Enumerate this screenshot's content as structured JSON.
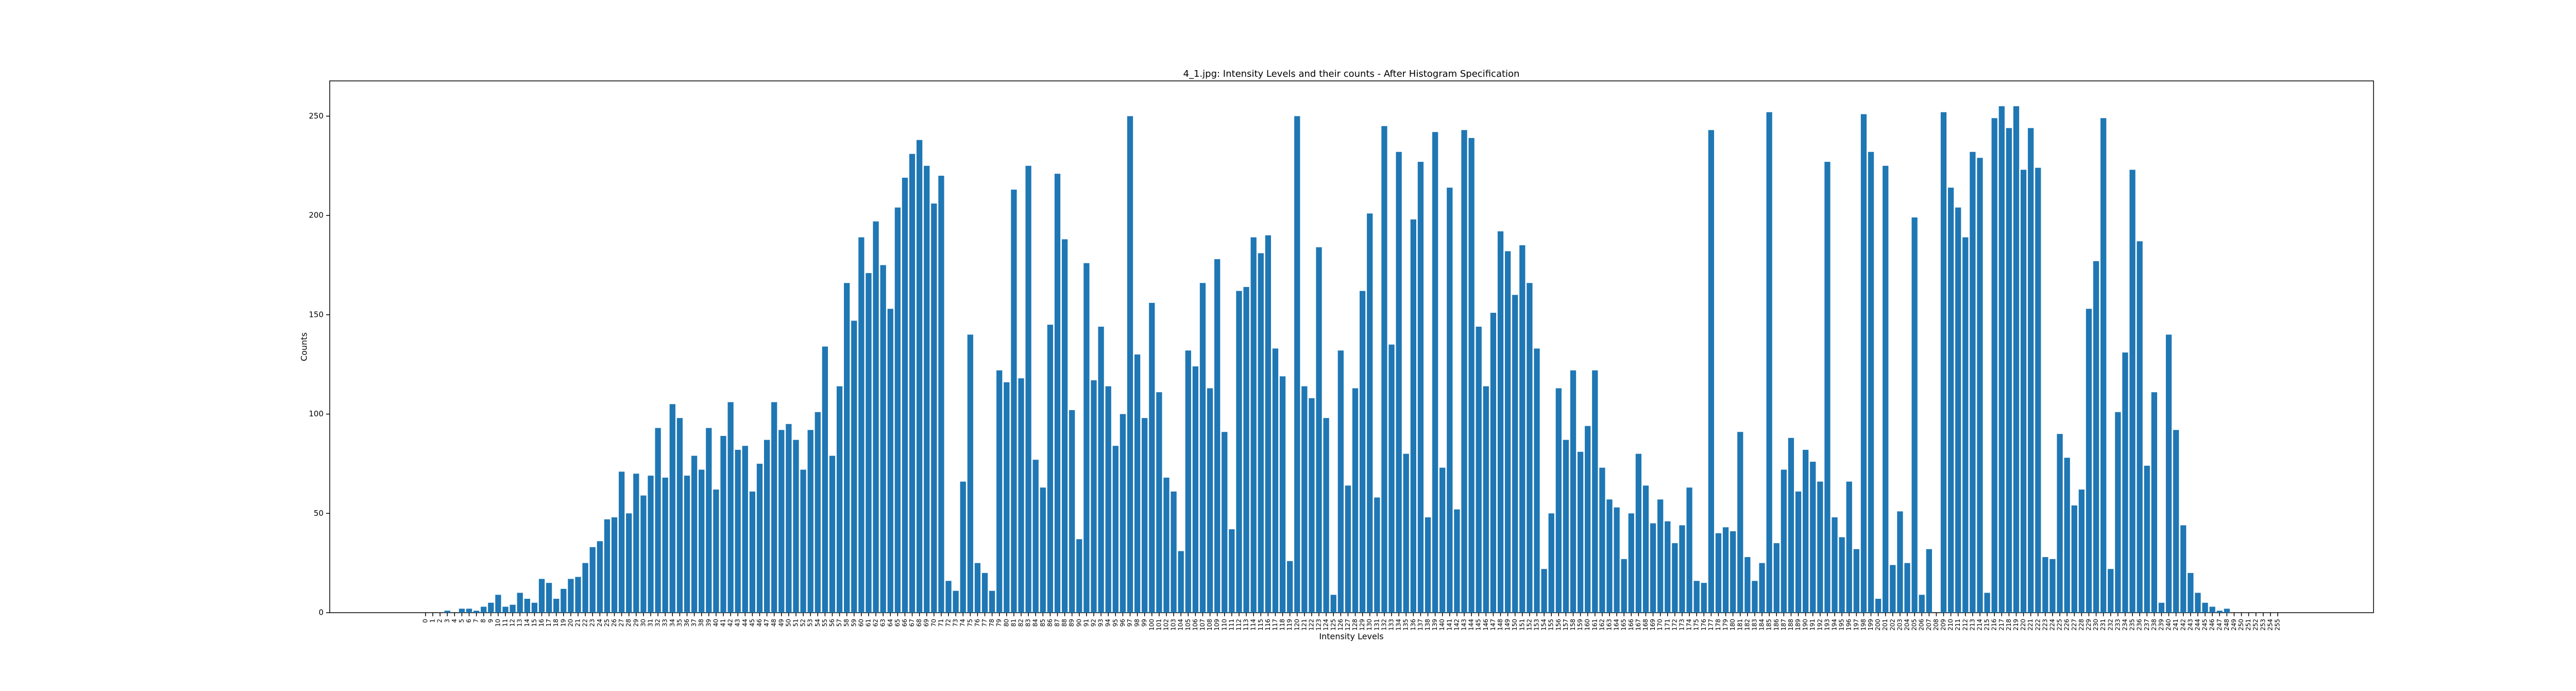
{
  "chart_data": {
    "type": "bar",
    "title": "4_1.jpg: Intensity Levels and their counts - After Histogram Specification",
    "xlabel": "Intensity Levels",
    "ylabel": "Counts",
    "color": "#1f77b4",
    "categories": [
      "0",
      "1",
      "2",
      "3",
      "4",
      "5",
      "6",
      "7",
      "8",
      "9",
      "10",
      "11",
      "12",
      "13",
      "14",
      "15",
      "16",
      "17",
      "18",
      "19",
      "20",
      "21",
      "22",
      "23",
      "24",
      "25",
      "26",
      "27",
      "28",
      "29",
      "30",
      "31",
      "32",
      "33",
      "34",
      "35",
      "36",
      "37",
      "38",
      "39",
      "40",
      "41",
      "42",
      "43",
      "44",
      "45",
      "46",
      "47",
      "48",
      "49",
      "50",
      "51",
      "52",
      "53",
      "54",
      "55",
      "56",
      "57",
      "58",
      "59",
      "60",
      "61",
      "62",
      "63",
      "64",
      "65",
      "66",
      "67",
      "68",
      "69",
      "70",
      "71",
      "72",
      "73",
      "74",
      "75",
      "76",
      "77",
      "78",
      "79",
      "80",
      "81",
      "82",
      "83",
      "84",
      "85",
      "86",
      "87",
      "88",
      "89",
      "90",
      "91",
      "92",
      "93",
      "94",
      "95",
      "96",
      "97",
      "98",
      "99",
      "100",
      "101",
      "102",
      "103",
      "104",
      "105",
      "106",
      "107",
      "108",
      "109",
      "110",
      "111",
      "112",
      "113",
      "114",
      "115",
      "116",
      "117",
      "118",
      "119",
      "120",
      "121",
      "122",
      "123",
      "124",
      "125",
      "126",
      "127",
      "128",
      "129",
      "130",
      "131",
      "132",
      "133",
      "134",
      "135",
      "136",
      "137",
      "138",
      "139",
      "140",
      "141",
      "142",
      "143",
      "144",
      "145",
      "146",
      "147",
      "148",
      "149",
      "150",
      "151",
      "152",
      "153",
      "154",
      "155",
      "156",
      "157",
      "158",
      "159",
      "160",
      "161",
      "162",
      "163",
      "164",
      "165",
      "166",
      "167",
      "168",
      "169",
      "170",
      "171",
      "172",
      "173",
      "174",
      "175",
      "176",
      "177",
      "178",
      "179",
      "180",
      "181",
      "182",
      "183",
      "184",
      "185",
      "186",
      "187",
      "188",
      "189",
      "190",
      "191",
      "192",
      "193",
      "194",
      "195",
      "196",
      "197",
      "198",
      "199",
      "200",
      "201",
      "202",
      "203",
      "204",
      "205",
      "206",
      "207",
      "208",
      "209",
      "210",
      "211",
      "212",
      "213",
      "214",
      "215",
      "216",
      "217",
      "218",
      "219",
      "220",
      "221",
      "222",
      "223",
      "224",
      "225",
      "226",
      "227",
      "228",
      "229",
      "230",
      "231",
      "232",
      "233",
      "234",
      "235",
      "236",
      "237",
      "238",
      "239",
      "240",
      "241",
      "242",
      "243",
      "244",
      "245",
      "246",
      "247",
      "248",
      "249",
      "250",
      "251",
      "252",
      "253",
      "254",
      "255"
    ],
    "values": [
      0,
      0,
      0,
      1,
      0,
      2,
      2,
      1,
      3,
      5,
      9,
      3,
      4,
      10,
      7,
      5,
      17,
      15,
      7,
      12,
      17,
      18,
      25,
      33,
      36,
      47,
      48,
      71,
      50,
      70,
      59,
      69,
      93,
      68,
      105,
      98,
      69,
      79,
      72,
      93,
      62,
      89,
      106,
      82,
      84,
      61,
      75,
      87,
      106,
      92,
      95,
      87,
      72,
      92,
      101,
      134,
      79,
      114,
      166,
      147,
      189,
      171,
      197,
      175,
      153,
      204,
      219,
      231,
      238,
      225,
      206,
      220,
      16,
      11,
      66,
      140,
      25,
      20,
      11,
      122,
      116,
      213,
      118,
      225,
      77,
      63,
      145,
      221,
      188,
      102,
      37,
      176,
      117,
      144,
      114,
      84,
      100,
      250,
      130,
      98,
      156,
      111,
      68,
      61,
      31,
      132,
      124,
      166,
      113,
      178,
      91,
      42,
      162,
      164,
      189,
      181,
      190,
      133,
      119,
      26,
      250,
      114,
      108,
      184,
      98,
      9,
      132,
      64,
      113,
      162,
      201,
      58,
      245,
      135,
      232,
      80,
      198,
      227,
      48,
      242,
      73,
      214,
      52,
      243,
      239,
      144,
      114,
      151,
      192,
      182,
      160,
      185,
      166,
      133,
      22,
      50,
      113,
      87,
      122,
      81,
      94,
      122,
      73,
      57,
      53,
      27,
      50,
      80,
      64,
      45,
      57,
      46,
      35,
      44,
      63,
      16,
      15,
      243,
      40,
      43,
      41,
      91,
      28,
      16,
      25,
      252,
      35,
      72,
      88,
      61,
      82,
      76,
      66,
      227,
      48,
      38,
      66,
      32,
      251,
      232,
      7,
      225,
      24,
      51,
      25,
      199,
      9,
      32,
      0,
      252,
      214,
      204,
      189,
      232,
      229,
      10,
      249,
      255,
      244,
      255,
      223,
      244,
      224,
      28,
      27,
      90,
      78,
      54,
      62,
      153,
      177,
      249,
      22,
      101,
      131,
      223,
      187,
      74,
      111,
      5,
      140,
      92,
      44,
      20,
      10,
      5,
      3,
      1,
      2,
      0,
      0,
      0,
      0,
      0,
      0,
      0
    ],
    "ylim": [
      0,
      267.75
    ],
    "yticks": [
      0,
      50,
      100,
      150,
      200,
      250
    ]
  }
}
